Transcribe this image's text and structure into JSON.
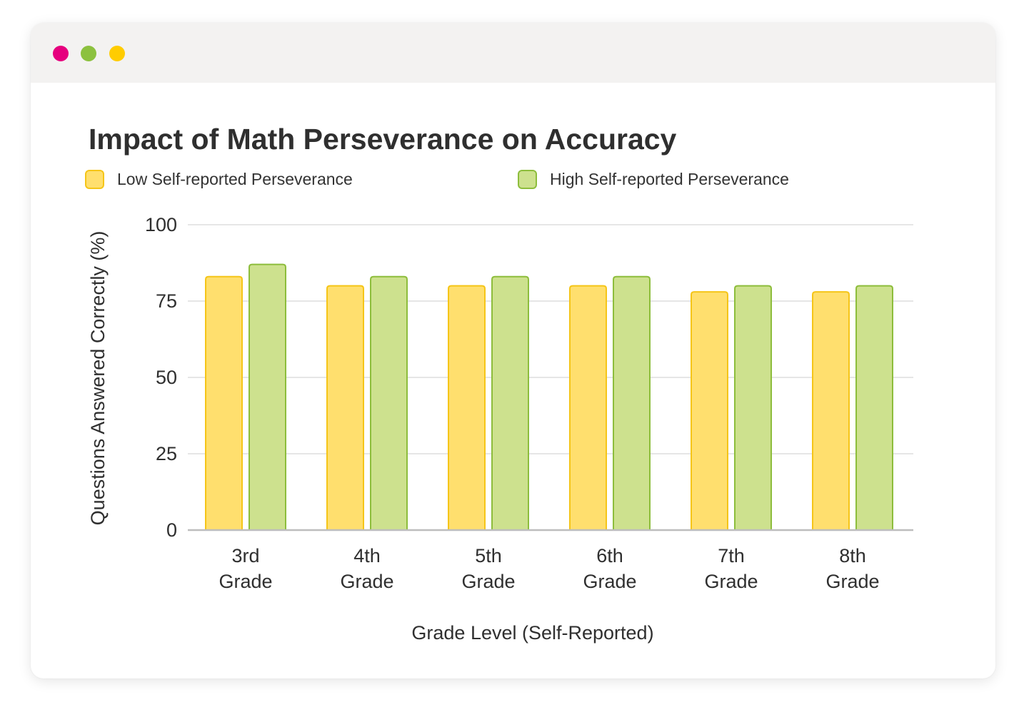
{
  "window": {
    "controls": [
      {
        "name": "close",
        "color": "#e6007e"
      },
      {
        "name": "minimize",
        "color": "#8cc13f"
      },
      {
        "name": "maximize",
        "color": "#ffcc00"
      }
    ]
  },
  "chart_data": {
    "type": "bar",
    "title": "Impact of Math Perseverance on Accuracy",
    "xlabel": "Grade Level (Self-Reported)",
    "ylabel": "Questions Answered Correctly (%)",
    "ylim": [
      0,
      100
    ],
    "yticks": [
      "0",
      "25",
      "50",
      "75",
      "100"
    ],
    "categories": [
      "3rd Grade",
      "4th Grade",
      "5th Grade",
      "6th Grade",
      "7th Grade",
      "8th Grade"
    ],
    "category_lines": [
      [
        "3rd",
        "Grade"
      ],
      [
        "4th",
        "Grade"
      ],
      [
        "5th",
        "Grade"
      ],
      [
        "6th",
        "Grade"
      ],
      [
        "7th",
        "Grade"
      ],
      [
        "8th",
        "Grade"
      ]
    ],
    "series": [
      {
        "name": "Low Self-reported Perseverance",
        "values": [
          83,
          80,
          80,
          80,
          78,
          78
        ],
        "fill": "#ffdf6e",
        "stroke": "#f5c518"
      },
      {
        "name": "High Self-reported Perseverance",
        "values": [
          87,
          83,
          83,
          83,
          80,
          80
        ],
        "fill": "#cde18e",
        "stroke": "#8dbd3c"
      }
    ],
    "grid": true,
    "legend_position": "top"
  }
}
